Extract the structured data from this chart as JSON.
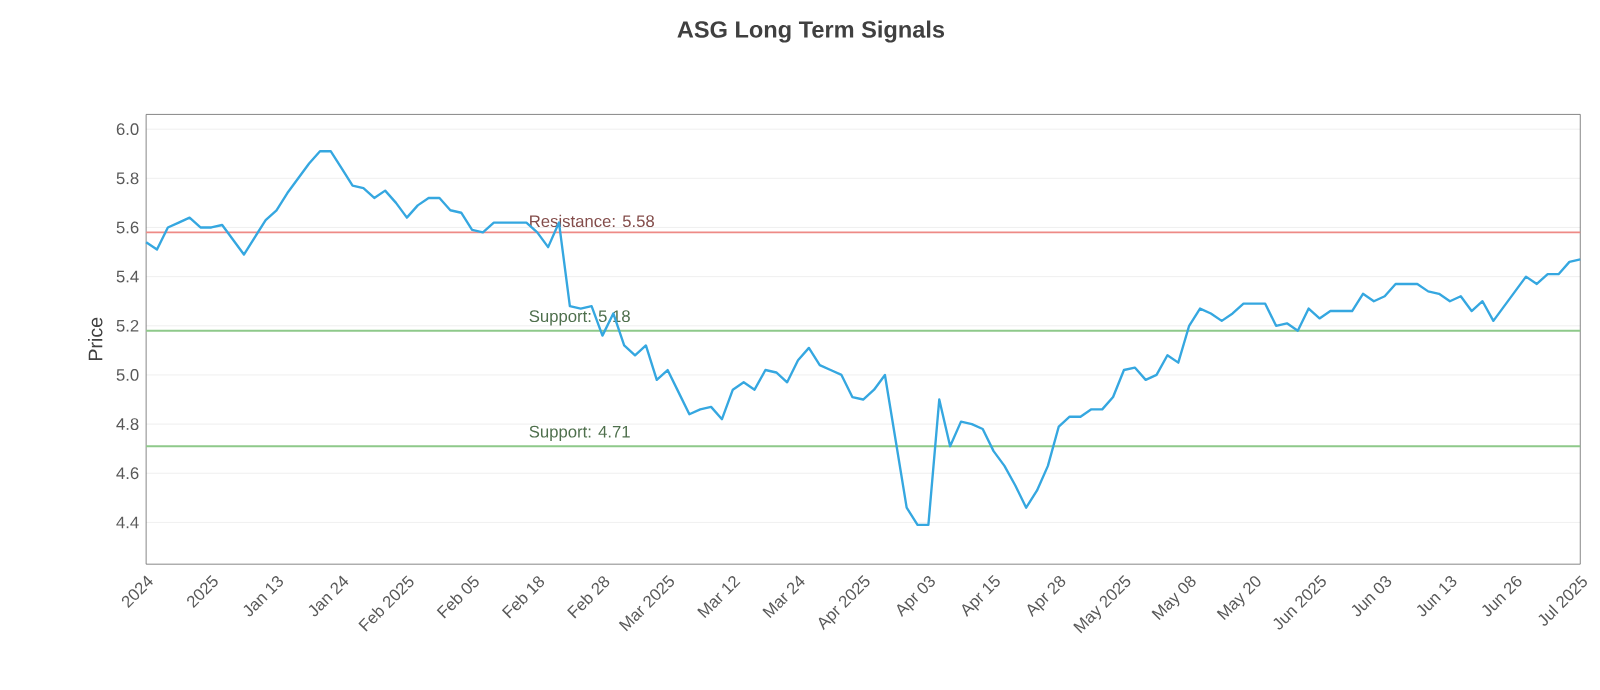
{
  "chart_data": {
    "type": "line",
    "title": "ASG Long Term Signals",
    "ylabel": "Price",
    "categories": [
      "2024",
      null,
      null,
      null,
      null,
      null,
      "2025",
      null,
      null,
      null,
      null,
      null,
      "Jan 13",
      null,
      null,
      null,
      null,
      null,
      "Jan 24",
      null,
      null,
      null,
      null,
      null,
      "Feb 2025",
      null,
      null,
      null,
      null,
      null,
      "Feb 05",
      null,
      null,
      null,
      null,
      null,
      "Feb 18",
      null,
      null,
      null,
      null,
      null,
      "Feb 28",
      null,
      null,
      null,
      null,
      null,
      "Mar 2025",
      null,
      null,
      null,
      null,
      null,
      "Mar 12",
      null,
      null,
      null,
      null,
      null,
      "Mar 24",
      null,
      null,
      null,
      null,
      null,
      "Apr 2025",
      null,
      null,
      null,
      null,
      null,
      "Apr 03",
      null,
      null,
      null,
      null,
      null,
      "Apr 15",
      null,
      null,
      null,
      null,
      null,
      "Apr 28",
      null,
      null,
      null,
      null,
      null,
      "May 2025",
      null,
      null,
      null,
      null,
      null,
      "May 08",
      null,
      null,
      null,
      null,
      null,
      "May 20",
      null,
      null,
      null,
      null,
      null,
      "Jun 2025",
      null,
      null,
      null,
      null,
      null,
      "Jun 03",
      null,
      null,
      null,
      null,
      null,
      "Jun 13",
      null,
      null,
      null,
      null,
      null,
      "Jun 26",
      null,
      null,
      null,
      null,
      null,
      "Jul 2025"
    ],
    "series": [
      {
        "color": "#35a7e0",
        "values": [
          5.54,
          5.51,
          5.6,
          5.62,
          5.64,
          5.6,
          5.6,
          5.61,
          5.55,
          5.49,
          5.56,
          5.63,
          5.67,
          5.74,
          5.8,
          5.86,
          5.91,
          5.91,
          5.84,
          5.77,
          5.76,
          5.72,
          5.75,
          5.7,
          5.64,
          5.69,
          5.72,
          5.72,
          5.67,
          5.66,
          5.59,
          5.58,
          5.62,
          5.62,
          5.62,
          5.62,
          5.58,
          5.52,
          5.62,
          5.28,
          5.27,
          5.28,
          5.16,
          5.25,
          5.12,
          5.08,
          5.12,
          4.98,
          5.02,
          4.93,
          4.84,
          4.86,
          4.87,
          4.82,
          4.94,
          4.97,
          4.94,
          5.02,
          5.01,
          4.97,
          5.06,
          5.11,
          5.04,
          5.02,
          5.0,
          4.91,
          4.9,
          4.94,
          5.0,
          4.73,
          4.46,
          4.39,
          4.39,
          4.9,
          4.71,
          4.81,
          4.8,
          4.78,
          4.69,
          4.63,
          4.55,
          4.46,
          4.53,
          4.63,
          4.79,
          4.83,
          4.83,
          4.86,
          4.86,
          4.91,
          5.02,
          5.03,
          4.98,
          5.0,
          5.08,
          5.05,
          5.2,
          5.27,
          5.25,
          5.22,
          5.25,
          5.29,
          5.29,
          5.29,
          5.2,
          5.21,
          5.18,
          5.27,
          5.23,
          5.26,
          5.26,
          5.26,
          5.33,
          5.3,
          5.32,
          5.37,
          5.37,
          5.37,
          5.34,
          5.33,
          5.3,
          5.32,
          5.26,
          5.3,
          5.22,
          5.28,
          5.34,
          5.4,
          5.37,
          5.41,
          5.41,
          5.46,
          5.47
        ]
      }
    ],
    "ylim": [
      4.23,
      6.06
    ],
    "yticks": [
      4.4,
      4.6,
      4.8,
      {
        "value": 5.0,
        "label": "5.0"
      },
      5.2,
      5.4,
      5.6,
      5.8,
      {
        "value": 6.0,
        "label": "6.0"
      }
    ],
    "grid": "y",
    "ref_lines": [
      {
        "axis": "y",
        "value": 5.58,
        "label": "Resistance: 5.58",
        "color": "#ee8a86"
      },
      {
        "axis": "y",
        "value": 5.18,
        "label": "Support: 5.18",
        "color": "#8ec98a"
      },
      {
        "axis": "y",
        "value": 4.71,
        "label": "Support: 4.71",
        "color": "#8ec98a"
      }
    ]
  }
}
